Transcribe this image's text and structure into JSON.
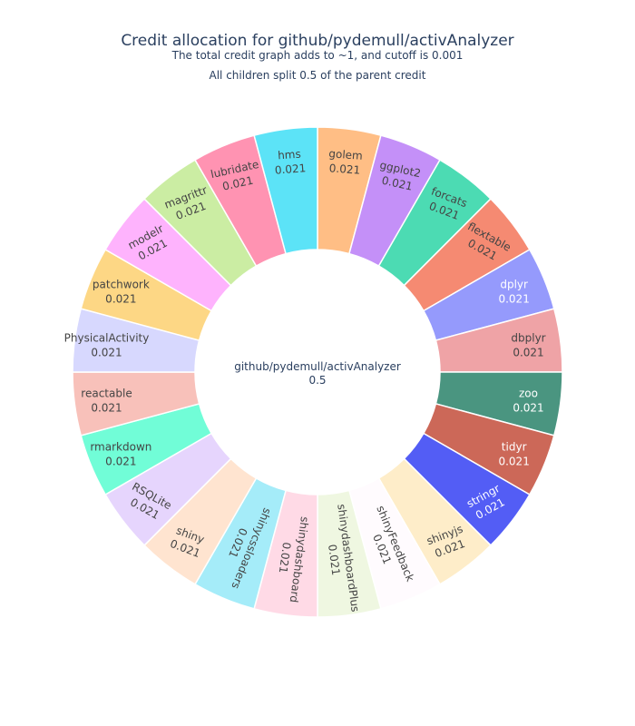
{
  "chart_data": {
    "type": "sunburst",
    "title": "Credit allocation for github/pydemull/activAnalyzer",
    "subtitle_lines": [
      "The total credit graph adds to ~1, and cutoff is 0.001",
      "All children split 0.5 of the parent credit"
    ],
    "root": {
      "label": "github/pydemull/activAnalyzer",
      "value": "0.5"
    },
    "children": [
      {
        "label": "golem",
        "value": "0.021",
        "color": "#FFBE85",
        "text_color": "#444444"
      },
      {
        "label": "ggplot2",
        "value": "0.021",
        "color": "#C490F8",
        "text_color": "#444444"
      },
      {
        "label": "forcats",
        "value": "0.021",
        "color": "#4CDBB3",
        "text_color": "#444444"
      },
      {
        "label": "flextable",
        "value": "0.021",
        "color": "#F58A72",
        "text_color": "#444444"
      },
      {
        "label": "dplyr",
        "value": "0.021",
        "color": "#959AFC",
        "text_color": "#ffffff"
      },
      {
        "label": "dbplyr",
        "value": "0.021",
        "color": "#EFA3A6",
        "text_color": "#444444"
      },
      {
        "label": "zoo",
        "value": "0.021",
        "color": "#4A9580",
        "text_color": "#ffffff"
      },
      {
        "label": "tidyr",
        "value": "0.021",
        "color": "#CC6858",
        "text_color": "#ffffff"
      },
      {
        "label": "stringr",
        "value": "0.021",
        "color": "#535DF5",
        "text_color": "#ffffff"
      },
      {
        "label": "shinyjs",
        "value": "0.021",
        "color": "#FEEDC9",
        "text_color": "#444444"
      },
      {
        "label": "shinyFeedback",
        "value": "0.021",
        "color": "#FFFBFE",
        "text_color": "#444444"
      },
      {
        "label": "shinydashboardPlus",
        "value": "0.021",
        "color": "#EFF7E1",
        "text_color": "#444444"
      },
      {
        "label": "shinydashboard",
        "value": "0.021",
        "color": "#FFDAE6",
        "text_color": "#444444"
      },
      {
        "label": "shinycssloaders",
        "value": "0.021",
        "color": "#A5ECF9",
        "text_color": "#444444"
      },
      {
        "label": "shiny",
        "value": "0.021",
        "color": "#FFE4D0",
        "text_color": "#444444"
      },
      {
        "label": "RSQLite",
        "value": "0.021",
        "color": "#E6D5FD",
        "text_color": "#444444"
      },
      {
        "label": "rmarkdown",
        "value": "0.021",
        "color": "#71FDD7",
        "text_color": "#444444"
      },
      {
        "label": "reactable",
        "value": "0.021",
        "color": "#F8C1BA",
        "text_color": "#444444"
      },
      {
        "label": "PhysicalActivity",
        "value": "0.021",
        "color": "#D7D8FE",
        "text_color": "#444444"
      },
      {
        "label": "patchwork",
        "value": "0.021",
        "color": "#FDD785",
        "text_color": "#444444"
      },
      {
        "label": "modelr",
        "value": "0.021",
        "color": "#FEB3FD",
        "text_color": "#444444"
      },
      {
        "label": "magrittr",
        "value": "0.021",
        "color": "#CBEDA3",
        "text_color": "#444444"
      },
      {
        "label": "lubridate",
        "value": "0.021",
        "color": "#FF93B2",
        "text_color": "#444444"
      },
      {
        "label": "hms",
        "value": "0.021",
        "color": "#5CE3F7",
        "text_color": "#444444"
      }
    ]
  }
}
